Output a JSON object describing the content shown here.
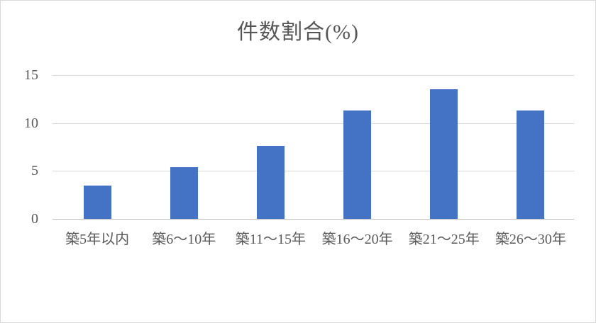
{
  "window": {
    "background_color": "#ffffff",
    "border_color": "#d9d9d9"
  },
  "chart_data": {
    "type": "bar",
    "title": "件数割合(%)",
    "categories": [
      "築5年以内",
      "築6～10年",
      "築11～15年",
      "築16～20年",
      "築21～25年",
      "築26～30年"
    ],
    "values": [
      3.5,
      5.4,
      7.6,
      11.3,
      13.5,
      11.3
    ],
    "xlabel": "",
    "ylabel": "",
    "ylim": [
      0,
      15
    ],
    "yticks": [
      0,
      5,
      10,
      15
    ],
    "grid": true,
    "legend_position": "none",
    "bar_color": "#4472c4",
    "gridline_color": "#d9d9d9",
    "axis_line_color": "#bfbfbf",
    "text_color": "#595959"
  }
}
